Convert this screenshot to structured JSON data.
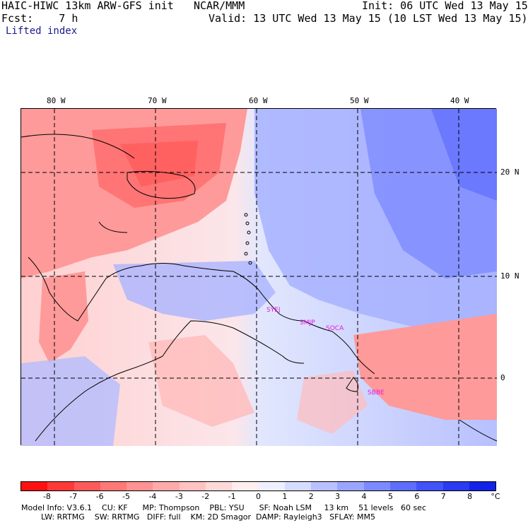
{
  "header": {
    "model": "HAIC-HIWC 13km ARW-GFS init",
    "org": "NCAR/MMM",
    "init": "Init: 06 UTC Wed 13 May 15",
    "fcst": "Fcst:    7 h",
    "valid": "Valid: 13 UTC Wed 13 May 15 (10 LST Wed 13 May 15)",
    "field": "Lifted index"
  },
  "map": {
    "lon_labels": [
      "80 W",
      "70 W",
      "60 W",
      "50 W",
      "40 W"
    ],
    "lat_labels": [
      "20 N",
      "10 N",
      "0"
    ],
    "stations": [
      "SYEJ",
      "SMJP",
      "SOCA",
      "SBBE"
    ]
  },
  "colorbar": {
    "labels": [
      "-8",
      "-7",
      "-6",
      "-5",
      "-4",
      "-3",
      "-2",
      "-1",
      "0",
      "1",
      "2",
      "3",
      "4",
      "5",
      "6",
      "7",
      "8"
    ],
    "unit": "°C",
    "colors": [
      "#ff1111",
      "#ff3838",
      "#ff5a5a",
      "#ff7878",
      "#ff9292",
      "#ffaaaa",
      "#ffc2c2",
      "#ffd8d8",
      "#ffeeee",
      "#eef0ff",
      "#d6dcff",
      "#b8c0ff",
      "#9aa5ff",
      "#7c8aff",
      "#5e6efc",
      "#4253f7",
      "#2a3bf0",
      "#1224e8"
    ]
  },
  "footer": {
    "line1": "Model Info: V3.6.1    CU: KF      MP: Thompson    PBL: YSU      SF: Noah LSM     13 km    51 levels   60 sec",
    "line2": "        LW: RRTMG    SW: RRTMG   DIFF: full    KM: 2D Smagor  DAMP: Rayleigh3   SFLAY: MM5"
  }
}
